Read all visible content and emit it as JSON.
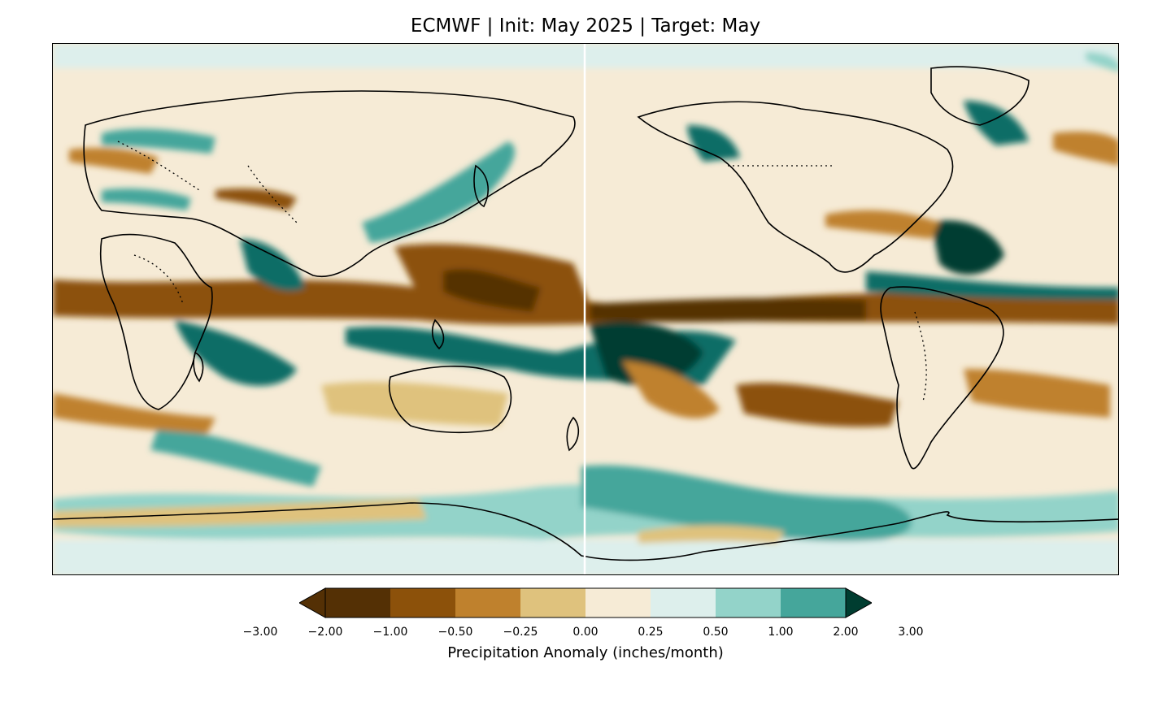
{
  "map": {
    "title": "ECMWF | Init: May 2025 | Target: May",
    "colorbar_label": "Precipitation Anomaly (inches/month)",
    "colorbar_ticks": [
      "−3.00",
      "−2.00",
      "−1.00",
      "−0.50",
      "−0.25",
      "0.00",
      "0.25",
      "0.50",
      "1.00",
      "2.00",
      "3.00"
    ],
    "colors": [
      "#543005",
      "#8c510a",
      "#bf812d",
      "#dfc27d",
      "#f6ebd6",
      "#ddefec",
      "#93d3c9",
      "#45a69b",
      "#0b6d66",
      "#003d30"
    ],
    "extend": "both",
    "projection": "plate-carree, centered 180°",
    "features": [
      "coastlines",
      "country-borders-dotted"
    ]
  }
}
